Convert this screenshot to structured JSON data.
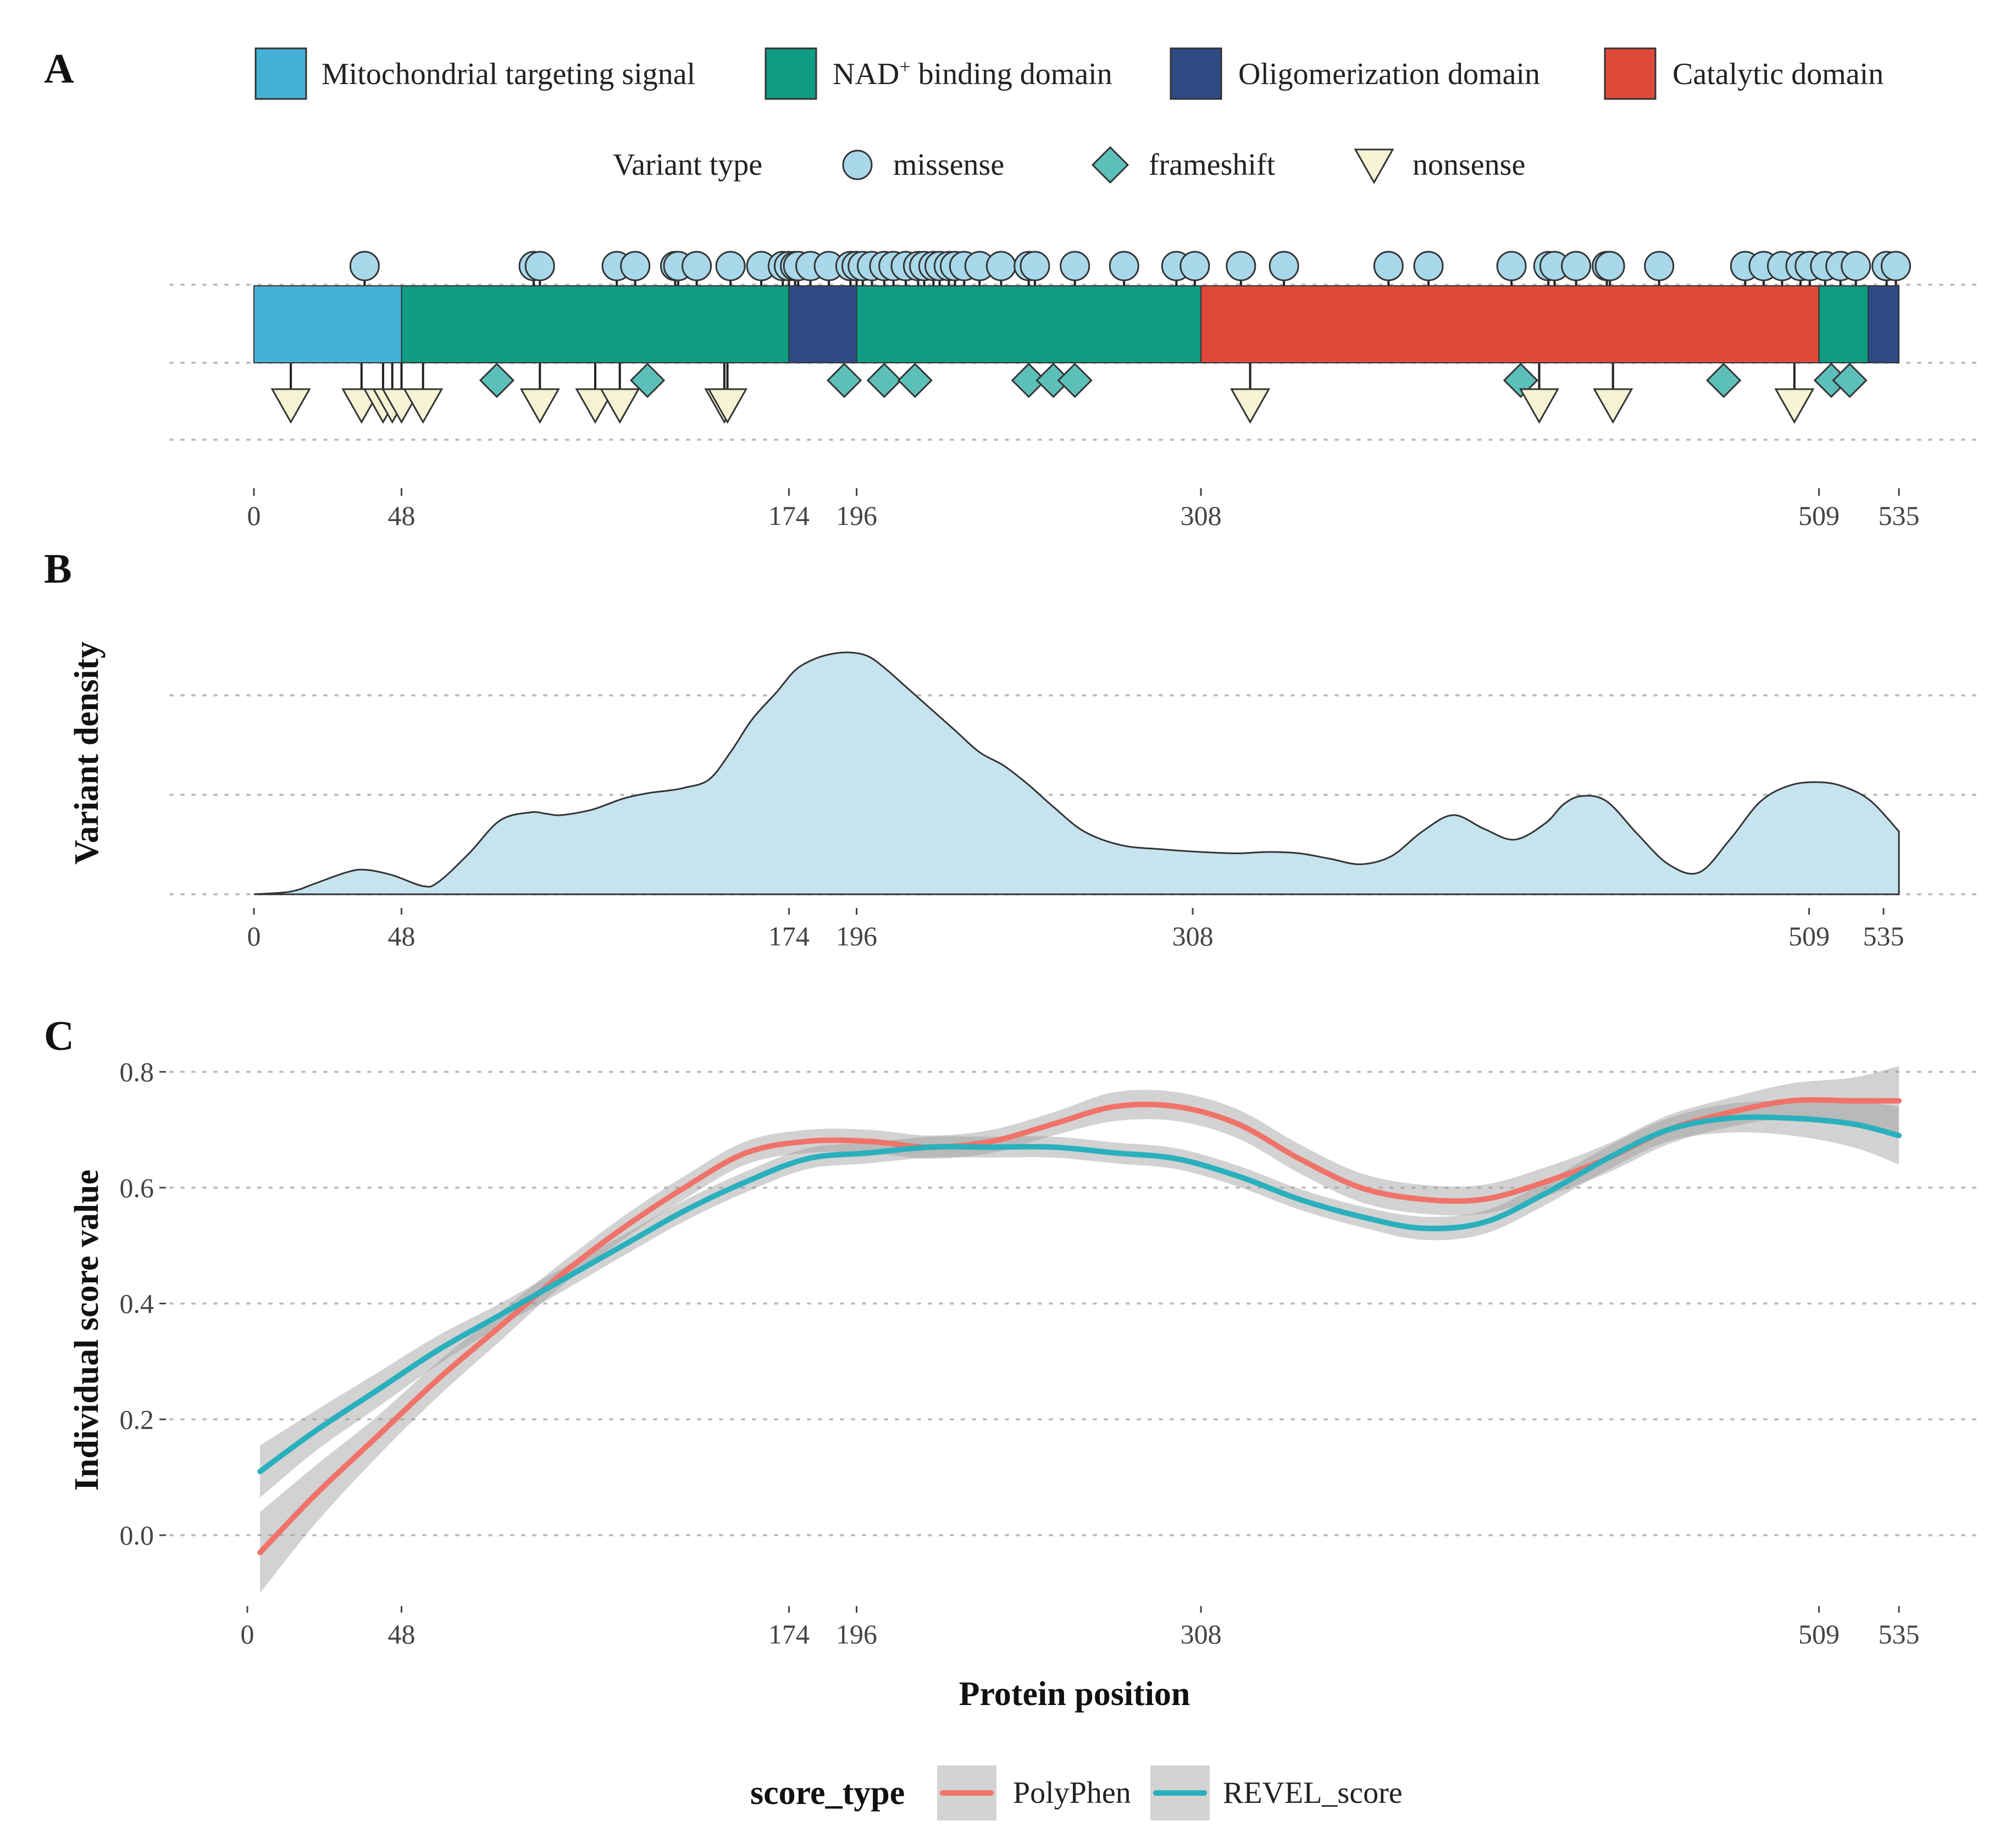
{
  "chart_data": [
    {
      "panel": "A",
      "type": "lollipop-domain",
      "domain_legend": [
        {
          "label": "Mitochondrial targeting signal",
          "color": "#45b1d4"
        },
        {
          "label": "NAD",
          "sup": "+",
          "label_rest": " binding domain",
          "color": "#0e9c82"
        },
        {
          "label": "Oligomerization domain",
          "color": "#2e4a87"
        },
        {
          "label": "Catalytic domain",
          "color": "#e0493a"
        }
      ],
      "variant_legend_title": "Variant type",
      "variant_types": [
        {
          "label": "missense",
          "shape": "circle",
          "color": "#a8d8ea"
        },
        {
          "label": "frameshift",
          "shape": "diamond",
          "color": "#5cbfb9"
        },
        {
          "label": "nonsense",
          "shape": "triangle-down",
          "color": "#f5f3d4"
        }
      ],
      "domains": [
        {
          "name": "Mitochondrial targeting signal",
          "start": 0,
          "end": 48,
          "color": "#45b1d4"
        },
        {
          "name": "NAD+ binding domain",
          "start": 48,
          "end": 174,
          "color": "#0e9c82"
        },
        {
          "name": "Oligomerization domain",
          "start": 174,
          "end": 196,
          "color": "#2e4a87"
        },
        {
          "name": "NAD+ binding domain",
          "start": 196,
          "end": 308,
          "color": "#0e9c82"
        },
        {
          "name": "Catalytic domain",
          "start": 308,
          "end": 509,
          "color": "#e0493a"
        },
        {
          "name": "NAD+ binding domain",
          "start": 509,
          "end": 525,
          "color": "#0e9c82"
        },
        {
          "name": "Oligomerization domain",
          "start": 525,
          "end": 535,
          "color": "#2e4a87"
        }
      ],
      "missense_positions": [
        36,
        91,
        93,
        118,
        124,
        137,
        138,
        144,
        155,
        165,
        172,
        174,
        176,
        177,
        181,
        187,
        194,
        196,
        198,
        201,
        205,
        208,
        212,
        216,
        218,
        221,
        223,
        226,
        228,
        231,
        236,
        243,
        252,
        254,
        267,
        283,
        300,
        306,
        321,
        335,
        369,
        382,
        409,
        421,
        423,
        430,
        440,
        441,
        457,
        485,
        491,
        497,
        503,
        506,
        511,
        516,
        521,
        531,
        534
      ],
      "frameshift_positions": [
        79,
        128,
        192,
        205,
        215,
        252,
        260,
        267,
        412,
        478,
        513,
        519
      ],
      "nonsense_positions": [
        12,
        35,
        42,
        45,
        48,
        55,
        93,
        111,
        119,
        153,
        154,
        324,
        418,
        442,
        501
      ],
      "x_ticks": [
        0,
        48,
        174,
        196,
        308,
        509,
        535
      ],
      "x_range": [
        0,
        535
      ]
    },
    {
      "panel": "B",
      "type": "area",
      "ylabel": "Variant density",
      "x": [
        0,
        12,
        20,
        30,
        36,
        45,
        55,
        60,
        70,
        80,
        90,
        95,
        100,
        110,
        120,
        128,
        135,
        140,
        148,
        155,
        162,
        170,
        176,
        182,
        188,
        194,
        200,
        206,
        212,
        220,
        228,
        236,
        244,
        252,
        260,
        270,
        282,
        295,
        308,
        320,
        330,
        340,
        350,
        360,
        370,
        380,
        390,
        400,
        410,
        420,
        426,
        432,
        440,
        450,
        460,
        470,
        480,
        490,
        500,
        510,
        518,
        526,
        535
      ],
      "values": [
        0.0,
        0.01,
        0.04,
        0.08,
        0.09,
        0.07,
        0.03,
        0.045,
        0.15,
        0.27,
        0.3,
        0.295,
        0.29,
        0.31,
        0.35,
        0.37,
        0.38,
        0.39,
        0.42,
        0.52,
        0.64,
        0.74,
        0.82,
        0.86,
        0.88,
        0.885,
        0.87,
        0.82,
        0.76,
        0.68,
        0.6,
        0.52,
        0.47,
        0.4,
        0.32,
        0.23,
        0.18,
        0.165,
        0.155,
        0.15,
        0.155,
        0.15,
        0.13,
        0.11,
        0.14,
        0.23,
        0.29,
        0.24,
        0.2,
        0.26,
        0.33,
        0.36,
        0.34,
        0.22,
        0.11,
        0.08,
        0.2,
        0.34,
        0.4,
        0.41,
        0.39,
        0.34,
        0.23
      ],
      "ylim": [
        0,
        1
      ],
      "x_ticks": [
        0,
        48,
        174,
        196,
        308,
        509,
        535
      ],
      "x_range": [
        0,
        535
      ]
    },
    {
      "panel": "C",
      "type": "line",
      "xlabel": "Protein position",
      "ylabel": "Individual score value",
      "legend_title": "score_type",
      "ylim": [
        -0.22,
        0.85
      ],
      "y_ticks": [
        0.0,
        0.2,
        0.4,
        0.6,
        0.8
      ],
      "y_tick_labels": [
        "0.0",
        "0.2",
        "0.4",
        "0.6",
        "0.8"
      ],
      "x_ticks": [
        0,
        48,
        174,
        196,
        308,
        509,
        535
      ],
      "x_range": [
        0,
        535
      ],
      "x": [
        2,
        20,
        40,
        60,
        80,
        100,
        120,
        140,
        160,
        180,
        200,
        220,
        240,
        260,
        280,
        300,
        320,
        340,
        360,
        380,
        400,
        420,
        440,
        460,
        480,
        500,
        520,
        535
      ],
      "series": [
        {
          "name": "PolyPhen",
          "color": "#f0736a",
          "values": [
            -0.03,
            0.07,
            0.17,
            0.27,
            0.36,
            0.45,
            0.53,
            0.6,
            0.66,
            0.68,
            0.68,
            0.67,
            0.68,
            0.71,
            0.74,
            0.74,
            0.71,
            0.65,
            0.6,
            0.58,
            0.58,
            0.61,
            0.65,
            0.7,
            0.73,
            0.75,
            0.75,
            0.75
          ],
          "ci_halfwidth": [
            0.07,
            0.05,
            0.035,
            0.03,
            0.025,
            0.02,
            0.02,
            0.02,
            0.02,
            0.02,
            0.02,
            0.02,
            0.02,
            0.02,
            0.025,
            0.025,
            0.025,
            0.025,
            0.025,
            0.025,
            0.025,
            0.025,
            0.025,
            0.025,
            0.025,
            0.03,
            0.04,
            0.06
          ]
        },
        {
          "name": "REVEL_score",
          "color": "#2ab0bd",
          "values": [
            0.11,
            0.18,
            0.25,
            0.32,
            0.38,
            0.44,
            0.5,
            0.56,
            0.61,
            0.65,
            0.66,
            0.67,
            0.67,
            0.67,
            0.66,
            0.65,
            0.62,
            0.58,
            0.55,
            0.53,
            0.54,
            0.59,
            0.65,
            0.7,
            0.72,
            0.72,
            0.71,
            0.69
          ],
          "ci_halfwidth": [
            0.045,
            0.035,
            0.03,
            0.025,
            0.02,
            0.02,
            0.018,
            0.018,
            0.018,
            0.018,
            0.018,
            0.018,
            0.018,
            0.018,
            0.018,
            0.018,
            0.018,
            0.018,
            0.018,
            0.02,
            0.02,
            0.02,
            0.02,
            0.02,
            0.025,
            0.03,
            0.04,
            0.05
          ]
        }
      ]
    }
  ],
  "panels": {
    "a": "A",
    "b": "B",
    "c": "C"
  }
}
